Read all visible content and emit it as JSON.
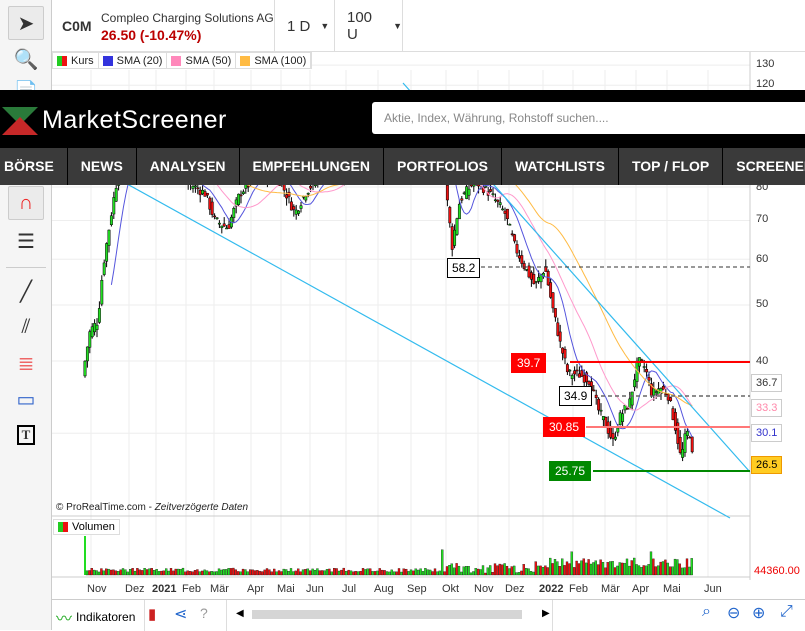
{
  "header": {
    "symbol": "C0M",
    "company": "Compleo Charging Solutions AG",
    "price_change": "26.50 (-10.47%)",
    "interval": "1 D",
    "units": "100 U"
  },
  "legend": [
    {
      "label": "Kurs",
      "color": "#22cc22"
    },
    {
      "label": "SMA (20)",
      "color": "#3333dd"
    },
    {
      "label": "SMA (50)",
      "color": "#ff88bb"
    },
    {
      "label": "SMA (100)",
      "color": "#ffbb44"
    }
  ],
  "banner": {
    "logo": "MarketScreener",
    "search_placeholder": "Aktie, Index, Währung, Rohstoff suchen....",
    "nav": [
      "BÖRSE",
      "NEWS",
      "ANALYSEN",
      "EMPFEHLUNGEN",
      "PORTFOLIOS",
      "WATCHLISTS",
      "TOP / FLOP",
      "SCREENER"
    ]
  },
  "y_axis": {
    "scale": "log",
    "ticks": [
      "130",
      "120",
      "80",
      "70",
      "60",
      "50",
      "40"
    ]
  },
  "levels": {
    "l582": "58.2",
    "l397": "39.7",
    "l349": "34.9",
    "l3085": "30.85",
    "l2575": "25.75"
  },
  "axis_badges": {
    "sma100": "36.7",
    "sma50": "33.3",
    "sma20": "30.1",
    "last": "26.5"
  },
  "copyright": "© ProRealTime.com - ",
  "delayed": "Zeitverzögerte Daten",
  "volume": {
    "label": "Volumen",
    "value": "44360.00"
  },
  "x_axis": [
    "Nov",
    "Dez",
    "2021",
    "Feb",
    "Mär",
    "Apr",
    "Mai",
    "Jun",
    "Jul",
    "Aug",
    "Sep",
    "Okt",
    "Nov",
    "Dez",
    "2022",
    "Feb",
    "Mär",
    "Apr",
    "Mai",
    "Jun"
  ],
  "bottom": {
    "indicators": "Indikatoren"
  },
  "colors": {
    "up": "#22dd22",
    "down": "#ee1111",
    "trend": "#33bbee",
    "sma20": "#5555dd",
    "sma50": "#ff99cc",
    "sma100": "#ffbb44"
  }
}
